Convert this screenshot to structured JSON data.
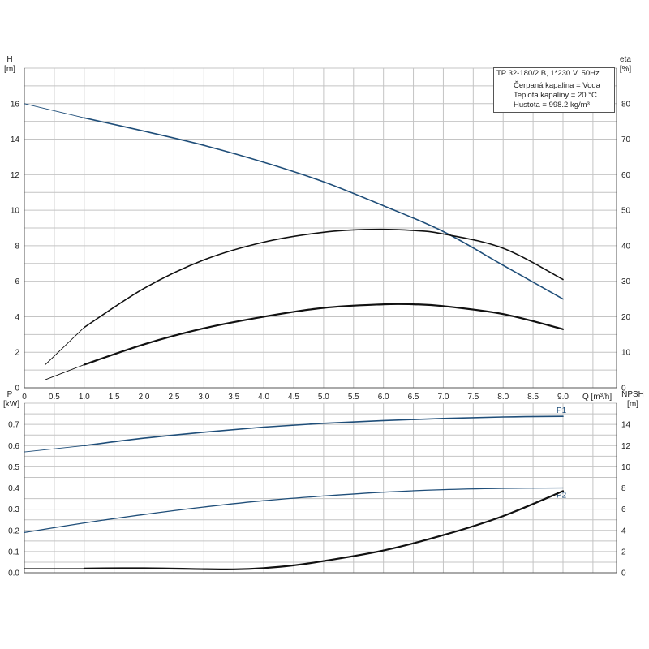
{
  "info": {
    "model": "TP 32-180/2 B, 1*230 V, 50Hz",
    "lines": [
      "Čerpaná kapalina = Voda",
      "Teplota kapaliny = 20 °C",
      "Hustota = 998.2 kg/m³"
    ]
  },
  "colors": {
    "blue": "#1f4e79",
    "black": "#111111",
    "grid": "#c4c4c4",
    "axis": "#555555"
  },
  "chart_data": [
    {
      "type": "line",
      "title": "",
      "xlabel": "Q [m³/h]",
      "xlim": [
        0,
        9.0
      ],
      "xticks": [
        "0",
        "0.5",
        "1.0",
        "1.5",
        "2.0",
        "2.5",
        "3.0",
        "3.5",
        "4.0",
        "4.5",
        "5.0",
        "5.5",
        "6.0",
        "6.5",
        "7.0",
        "7.5",
        "8.0",
        "8.5",
        "9.0"
      ],
      "y_left": {
        "label": [
          "H",
          "[m]"
        ],
        "lim": [
          0,
          18
        ],
        "ticks": [
          "0",
          "2",
          "4",
          "6",
          "8",
          "10",
          "12",
          "14",
          "16"
        ]
      },
      "y_right": {
        "label": [
          "eta",
          "[%]"
        ],
        "lim": [
          0,
          90
        ],
        "ticks": [
          "0",
          "10",
          "20",
          "30",
          "40",
          "50",
          "60",
          "70",
          "80"
        ]
      },
      "grid": true,
      "series": [
        {
          "axis": "left",
          "color": "#1f4e79",
          "x": [
            0,
            1.0,
            2.0,
            3.0,
            4.0,
            5.0,
            6.0,
            7.0,
            8.0,
            9.0
          ],
          "y": [
            16.0,
            15.2,
            14.45,
            13.65,
            12.7,
            11.6,
            10.25,
            8.8,
            6.9,
            5.0
          ],
          "thin_until": 1.0
        },
        {
          "axis": "right",
          "color": "#111111",
          "x": [
            0.35,
            1.0,
            2.0,
            3.0,
            4.0,
            5.0,
            5.8,
            6.5,
            7.0,
            8.0,
            9.0
          ],
          "y": [
            6.5,
            17.0,
            28.0,
            36.0,
            41.0,
            43.8,
            44.6,
            44.3,
            43.3,
            39.3,
            30.5
          ],
          "thin_until": 1.0
        },
        {
          "axis": "left",
          "color": "#111111",
          "width": 2.2,
          "x": [
            0.35,
            1.0,
            2.0,
            3.0,
            4.0,
            5.0,
            6.0,
            6.5,
            7.0,
            8.0,
            9.0
          ],
          "y": [
            0.45,
            1.3,
            2.45,
            3.35,
            4.0,
            4.5,
            4.7,
            4.7,
            4.6,
            4.15,
            3.3
          ],
          "thin_until": 1.0
        }
      ]
    },
    {
      "type": "line",
      "title": "",
      "xlim": [
        0,
        9.0
      ],
      "y_left": {
        "label": [
          "P",
          "[kW]"
        ],
        "lim": [
          0,
          0.8
        ],
        "ticks": [
          "0.0",
          "0.1",
          "0.2",
          "0.3",
          "0.4",
          "0.5",
          "0.6",
          "0.7"
        ]
      },
      "y_right": {
        "label": [
          "NPSH",
          "[m]"
        ],
        "lim": [
          0,
          16
        ],
        "ticks": [
          "0",
          "2",
          "4",
          "6",
          "8",
          "10",
          "12",
          "14"
        ]
      },
      "grid": true,
      "series": [
        {
          "name": "P1",
          "axis": "left",
          "color": "#1f4e79",
          "x": [
            0,
            1.0,
            2.0,
            3.0,
            4.0,
            5.0,
            6.0,
            7.0,
            8.0,
            9.0
          ],
          "y": [
            0.57,
            0.6,
            0.635,
            0.663,
            0.687,
            0.705,
            0.718,
            0.728,
            0.735,
            0.738
          ],
          "thin_until": 1.0
        },
        {
          "name": "P2",
          "axis": "left",
          "color": "#1f4e79",
          "width": 1.3,
          "x": [
            0,
            1.0,
            2.0,
            3.0,
            4.0,
            5.0,
            6.0,
            7.0,
            8.0,
            9.0
          ],
          "y": [
            0.19,
            0.235,
            0.275,
            0.31,
            0.34,
            0.362,
            0.38,
            0.392,
            0.398,
            0.4
          ]
        },
        {
          "axis": "right",
          "color": "#111111",
          "width": 2.2,
          "x": [
            0,
            1.0,
            2.0,
            3.0,
            3.5,
            4.0,
            4.5,
            5.0,
            6.0,
            7.0,
            8.0,
            9.0
          ],
          "y": [
            0.4,
            0.4,
            0.42,
            0.34,
            0.32,
            0.44,
            0.7,
            1.1,
            2.1,
            3.55,
            5.35,
            7.7
          ],
          "thin_until": 1.0
        }
      ]
    }
  ]
}
